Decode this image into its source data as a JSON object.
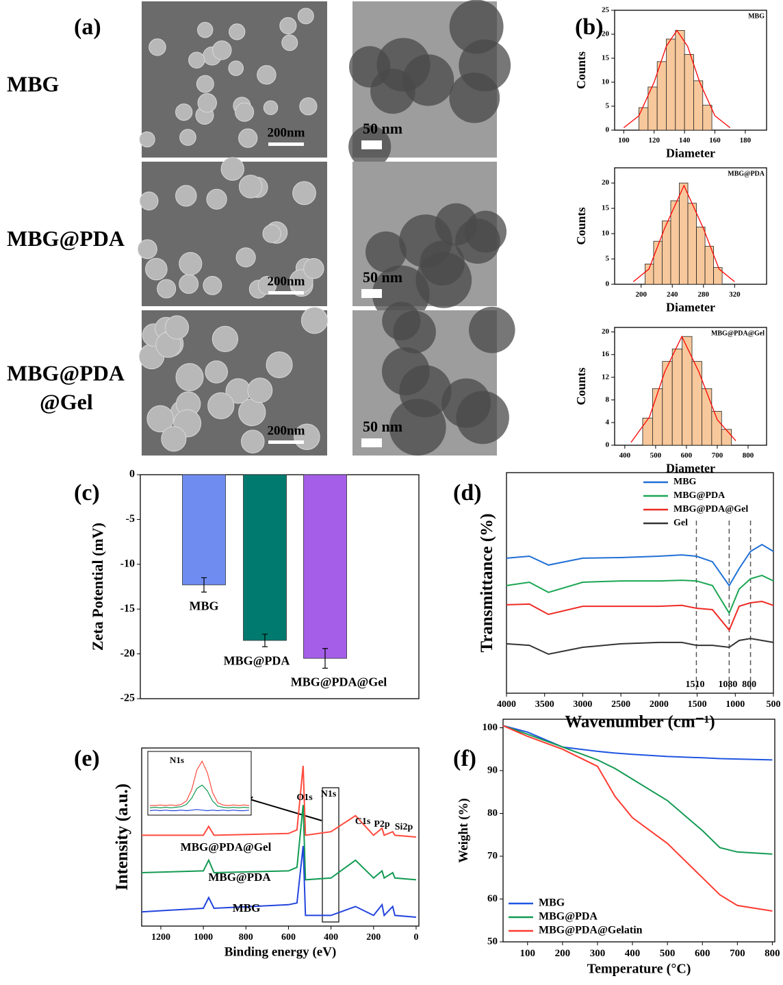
{
  "images": {
    "panel_label": "(a)",
    "rows": [
      {
        "label": [
          "MBG"
        ],
        "sem_scale": "200nm",
        "tem_scale": "50 nm"
      },
      {
        "label": [
          "MBG@PDA"
        ],
        "sem_scale": "200nm",
        "tem_scale": "50 nm"
      },
      {
        "label": [
          "MBG@PDA",
          "@Gel"
        ],
        "sem_scale": "200nm",
        "tem_scale": "50 nm"
      }
    ]
  },
  "chart_data": [
    {
      "type": "histogram",
      "panel_label": "(b)",
      "title": "MBG",
      "xlabel": "Diameter",
      "ylabel": "Counts",
      "bins": [
        110,
        116,
        122,
        128,
        134,
        140,
        146,
        152,
        158
      ],
      "values": [
        4.7,
        9,
        14.3,
        19,
        20.8,
        15.8,
        10.3,
        5.2
      ],
      "color": "#f7c89b",
      "fit": {
        "x": [
          100,
          110,
          120,
          128,
          135,
          142,
          150,
          160,
          170
        ],
        "values": [
          0.5,
          3,
          10,
          17.5,
          20.8,
          17.5,
          10,
          3,
          0.5
        ],
        "color": "#ff0000"
      },
      "xlim": [
        94,
        194
      ],
      "ylim": [
        0,
        25
      ],
      "xticks": [
        100,
        120,
        140,
        160,
        180
      ],
      "yticks": [
        0,
        5,
        10,
        15,
        20,
        25
      ]
    },
    {
      "type": "histogram",
      "title": "MBG@PDA",
      "xlabel": "Diameter",
      "ylabel": "Counts",
      "bins": [
        205,
        216,
        227,
        238,
        249,
        260,
        271,
        282,
        293,
        304
      ],
      "values": [
        4,
        8.5,
        12.5,
        16.5,
        20,
        16,
        11.3,
        7.5,
        3.3
      ],
      "color": "#f7c89b",
      "fit": {
        "x": [
          190,
          210,
          230,
          255,
          280,
          300,
          320
        ],
        "values": [
          0.5,
          3,
          11,
          19.5,
          11,
          3,
          0.5
        ],
        "color": "#ff0000"
      },
      "xlim": [
        166,
        361
      ],
      "ylim": [
        0,
        23
      ],
      "xticks": [
        200,
        240,
        280,
        320
      ],
      "yticks": [
        0,
        5,
        10,
        15,
        20
      ]
    },
    {
      "type": "histogram",
      "title": "MBG@PDA@Gel",
      "xlabel": "Diameter",
      "ylabel": "Counts",
      "bins": [
        458,
        490,
        522,
        554,
        586,
        618,
        650,
        682,
        714,
        746
      ],
      "values": [
        4.8,
        10,
        14.8,
        17,
        19.2,
        14.8,
        10,
        6,
        2.8
      ],
      "color": "#f7c89b",
      "fit": {
        "x": [
          420,
          480,
          530,
          585,
          640,
          700,
          760
        ],
        "values": [
          0.5,
          5,
          13,
          19.2,
          13,
          4.5,
          0.8
        ],
        "color": "#ff0000"
      },
      "xlim": [
        367,
        860
      ],
      "ylim": [
        0,
        20.8
      ],
      "xticks": [
        400,
        500,
        600,
        700,
        800
      ],
      "yticks": [
        0,
        4,
        8,
        12,
        16,
        20
      ]
    },
    {
      "type": "bar",
      "panel_label": "(c)",
      "ylabel": "Zeta Potential (mV)",
      "categories": [
        "MBG",
        "MBG@PDA",
        "MBG@PDA@Gel"
      ],
      "values": [
        -12.3,
        -18.5,
        -20.5
      ],
      "errors": [
        0.8,
        0.7,
        1.1
      ],
      "colors": [
        "#6f8cf0",
        "#007a6e",
        "#a45ee8"
      ],
      "ylim": [
        -25,
        0
      ],
      "yticks": [
        0,
        -5,
        -10,
        -15,
        -20,
        -25
      ]
    },
    {
      "type": "line",
      "panel_label": "(d)",
      "xlabel": "Wavenumber (cm⁻¹)",
      "ylabel": "Transmittance (%)",
      "x": [
        4000,
        3700,
        3450,
        3000,
        2500,
        2000,
        1700,
        1510,
        1300,
        1080,
        950,
        800,
        650,
        500
      ],
      "series": [
        {
          "name": "MBG",
          "color": "#1f6fd6",
          "values": [
            61.2,
            62.1,
            58.1,
            61.2,
            61.5,
            62.1,
            62.7,
            62.1,
            59.6,
            48.8,
            56.5,
            64.3,
            67.4,
            64.3
          ]
        },
        {
          "name": "MBG@PDA",
          "color": "#1aa653",
          "values": [
            48.8,
            50.3,
            45.7,
            50.3,
            50.9,
            50.9,
            51.2,
            50.9,
            48.8,
            36.3,
            47.2,
            51.9,
            53.4,
            50.9
          ]
        },
        {
          "name": "MBG@PDA@Gel",
          "color": "#ee2a24",
          "values": [
            40.1,
            40.4,
            35.7,
            39.4,
            39.4,
            39.4,
            39.8,
            38.5,
            37.9,
            28.6,
            39.4,
            41.0,
            41.6,
            39.8
          ]
        },
        {
          "name": "Gel",
          "color": "#333333",
          "values": [
            22.4,
            21.7,
            17.7,
            20.8,
            22.4,
            23.0,
            23.0,
            21.7,
            21.7,
            20.8,
            23.9,
            24.8,
            23.9,
            23.0
          ]
        }
      ],
      "markers": [
        1510,
        1080,
        800
      ],
      "legend": "upper right",
      "xlim": [
        4000,
        500
      ],
      "ylim": [
        0,
        100
      ],
      "xticks": [
        4000,
        3500,
        3000,
        2500,
        2000,
        1500,
        1000,
        500
      ]
    },
    {
      "type": "line",
      "panel_label": "(e)",
      "xlabel": "Binding energy (eV)",
      "ylabel": "Intensity (a.u.)",
      "x": [
        1290,
        1000,
        975,
        950,
        600,
        560,
        531,
        520,
        400,
        285,
        200,
        160,
        150,
        110,
        100,
        0
      ],
      "series": [
        {
          "name": "MBG@PDA@Gel",
          "color": "#ff4a3d",
          "values": [
            51,
            51,
            56,
            51,
            52,
            54,
            90,
            51,
            53,
            62,
            51,
            55,
            51,
            53,
            51,
            50
          ]
        },
        {
          "name": "MBG@PDA",
          "color": "#129a52",
          "values": [
            30,
            31,
            37,
            30,
            31,
            33,
            68,
            26,
            27,
            37,
            27,
            31,
            27,
            30,
            27,
            26
          ]
        },
        {
          "name": "MBG",
          "color": "#2244dd",
          "values": [
            8,
            10,
            16,
            10,
            12,
            13,
            45,
            6,
            6,
            11,
            6,
            12,
            6,
            11,
            6,
            5
          ]
        }
      ],
      "peak_labels": [
        "O1s",
        "N1s",
        "C1s",
        "P2p",
        "Si2p"
      ],
      "inset": {
        "title": "N1s",
        "ylim": [
          0,
          100
        ],
        "series": [
          {
            "color": "#ff4a3d",
            "values": [
              12,
              12,
              13,
              12,
              13,
              12,
              14,
              20,
              40,
              75,
              90,
              70,
              35,
              17,
              13,
              12,
              13,
              12,
              13,
              12
            ]
          },
          {
            "color": "#129a52",
            "values": [
              8,
              9,
              8,
              9,
              8,
              9,
              10,
              14,
              25,
              42,
              48,
              38,
              20,
              11,
              9,
              8,
              9,
              8,
              9,
              8
            ]
          },
          {
            "color": "#2244dd",
            "values": [
              3,
              4,
              3,
              4,
              3,
              3,
              4,
              3,
              4,
              5,
              4,
              3,
              4,
              3,
              4,
              3,
              4,
              3,
              3,
              4
            ]
          }
        ]
      },
      "xlim": [
        1290,
        -13
      ],
      "ylim": [
        0,
        100
      ],
      "xticks": [
        1200,
        1000,
        800,
        600,
        400,
        200,
        0
      ]
    },
    {
      "type": "line",
      "panel_label": "(f)",
      "xlabel": "Temperature (°C)",
      "ylabel": "Weight (%)",
      "x": [
        30,
        100,
        200,
        300,
        350,
        400,
        500,
        600,
        650,
        700,
        800
      ],
      "series": [
        {
          "name": "MBG",
          "color": "#1f55e0",
          "values": [
            100.5,
            99,
            95.5,
            94.5,
            94.1,
            93.8,
            93.3,
            93,
            92.8,
            92.7,
            92.5
          ]
        },
        {
          "name": "MBG@PDA",
          "color": "#129a52",
          "values": [
            100.5,
            98.5,
            95.5,
            92.5,
            90.5,
            88,
            83,
            76,
            72,
            71,
            70.5
          ]
        },
        {
          "name": "MBG@PDA@Gelatin",
          "color": "#ff3b30",
          "values": [
            100.5,
            98,
            95,
            91,
            84,
            79,
            73,
            65,
            61,
            58.5,
            57.2
          ]
        }
      ],
      "legend": "lower left",
      "xlim": [
        30,
        807
      ],
      "ylim": [
        50,
        102
      ],
      "xticks": [
        100,
        200,
        300,
        400,
        500,
        600,
        700,
        800
      ],
      "yticks": [
        50,
        60,
        70,
        80,
        90,
        100
      ]
    }
  ]
}
